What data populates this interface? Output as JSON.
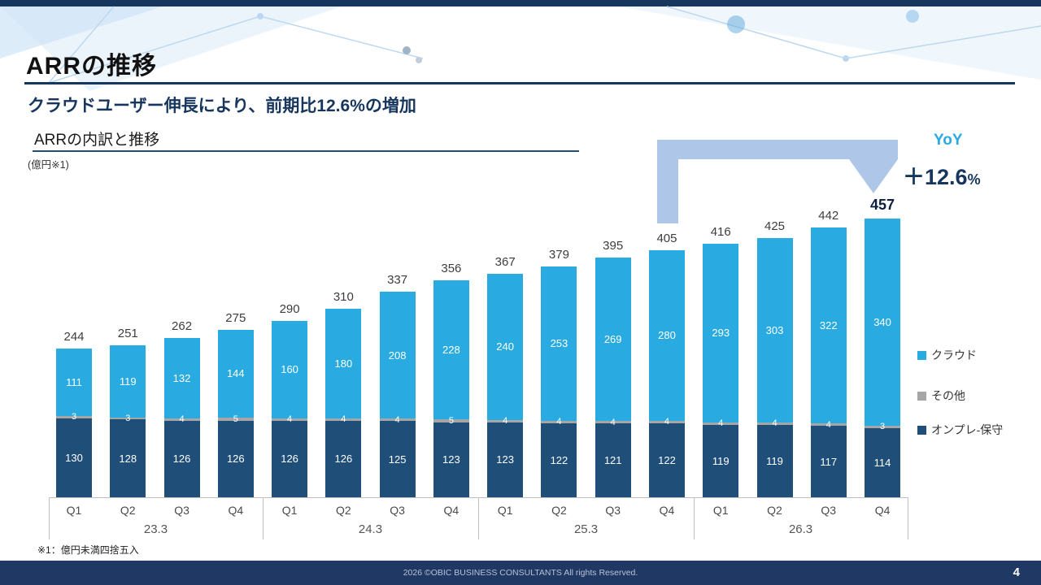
{
  "page": {
    "title": "ARRの推移",
    "subtitle": "クラウドユーザー伸長により、前期比12.6%の増加",
    "footnote": "※1：億円未満四捨五入",
    "footer_text": "2026 ©OBIC BUSINESS CONSULTANTS All rights Reserved.",
    "page_number": "4"
  },
  "chart": {
    "heading": "ARRの内訳と推移",
    "unit_label": "(億円※1)",
    "yoy_label": "YoY",
    "yoy_value": "＋12.6",
    "yoy_percent": "%"
  },
  "colors": {
    "accent_navy": "#17365d",
    "cloud_blue": "#29abe2",
    "other_gray": "#a6a6a6",
    "onprem_navy": "#1f4e79",
    "arrow_blue": "#aec6e8"
  },
  "chart_data": {
    "type": "bar",
    "stacked": true,
    "title": "ARRの内訳と推移",
    "unit": "億円",
    "categories": [
      "Q1",
      "Q2",
      "Q3",
      "Q4",
      "Q1",
      "Q2",
      "Q3",
      "Q4",
      "Q1",
      "Q2",
      "Q3",
      "Q4",
      "Q1",
      "Q2",
      "Q3",
      "Q4"
    ],
    "group_labels": [
      "23.3",
      "24.3",
      "25.3",
      "26.3"
    ],
    "group_size": 4,
    "series": [
      {
        "name": "クラウド",
        "color": "#29abe2",
        "values": [
          111,
          119,
          132,
          144,
          160,
          180,
          208,
          228,
          240,
          253,
          269,
          280,
          293,
          303,
          322,
          340
        ]
      },
      {
        "name": "その他",
        "color": "#a6a6a6",
        "values": [
          3,
          3,
          4,
          5,
          4,
          4,
          4,
          5,
          4,
          4,
          4,
          4,
          4,
          4,
          4,
          3
        ]
      },
      {
        "name": "オンプレ-保守",
        "color": "#1f4e79",
        "values": [
          130,
          128,
          126,
          126,
          126,
          126,
          125,
          123,
          123,
          122,
          121,
          122,
          119,
          119,
          117,
          114
        ]
      }
    ],
    "totals": [
      244,
      251,
      262,
      275,
      290,
      310,
      337,
      356,
      367,
      379,
      395,
      405,
      416,
      425,
      442,
      457
    ],
    "yoy_change_percent": 12.6,
    "ylim": [
      0,
      500
    ],
    "grid": false,
    "legend_position": "right"
  }
}
